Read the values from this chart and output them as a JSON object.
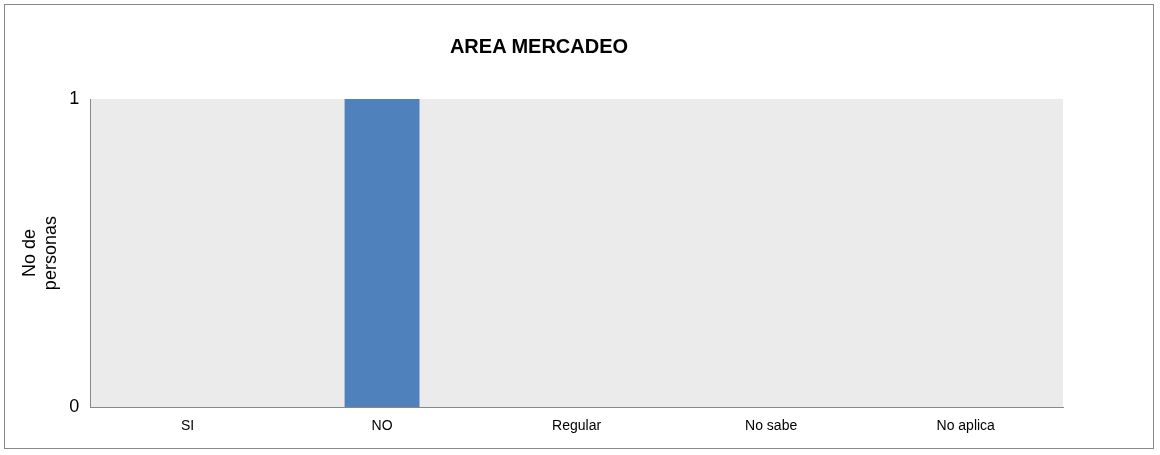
{
  "chart_data": {
    "type": "bar",
    "title": "AREA MERCADEO",
    "ylabel": "No de personas",
    "categories": [
      "SI",
      "NO",
      "Regular",
      "No sabe",
      "No aplica"
    ],
    "values": [
      0,
      1,
      0,
      0,
      0
    ],
    "color": "#4f81bd",
    "ylim": [
      0,
      1
    ],
    "yticks": [
      0,
      1
    ],
    "grid": false,
    "legend": false
  }
}
